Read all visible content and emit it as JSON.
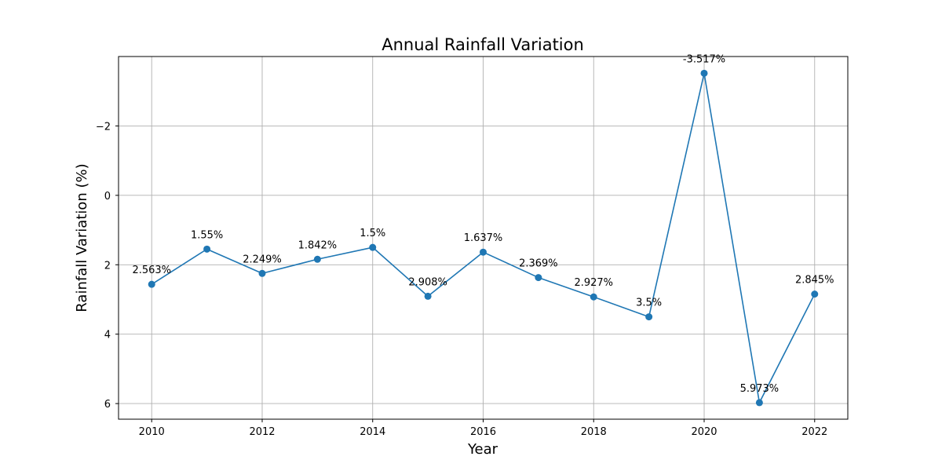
{
  "chart_data": {
    "type": "line",
    "title": "Annual Rainfall Variation",
    "xlabel": "Year",
    "ylabel": "Rainfall Variation (%)",
    "y_inverted": true,
    "grid": true,
    "xlim": [
      2009.4,
      2022.6
    ],
    "ylim": [
      -4.0,
      6.45
    ],
    "x_ticks": [
      2010,
      2012,
      2014,
      2016,
      2018,
      2020,
      2022
    ],
    "y_ticks": [
      -2,
      0,
      2,
      4,
      6
    ],
    "y_tick_labels": [
      "−2",
      "0",
      "2",
      "4",
      "6"
    ],
    "series": [
      {
        "color": "#1f77b4",
        "marker": "circle",
        "x": [
          2010,
          2011,
          2012,
          2013,
          2014,
          2015,
          2016,
          2017,
          2018,
          2019,
          2020,
          2021,
          2022
        ],
        "y": [
          2.563,
          1.55,
          2.249,
          1.842,
          1.5,
          2.908,
          1.637,
          2.369,
          2.927,
          3.5,
          -3.517,
          5.973,
          2.845
        ],
        "labels": [
          "2.563%",
          "1.55%",
          "2.249%",
          "1.842%",
          "1.5%",
          "2.908%",
          "1.637%",
          "2.369%",
          "2.927%",
          "3.5%",
          "-3.517%",
          "5.973%",
          "2.845%"
        ]
      }
    ]
  }
}
